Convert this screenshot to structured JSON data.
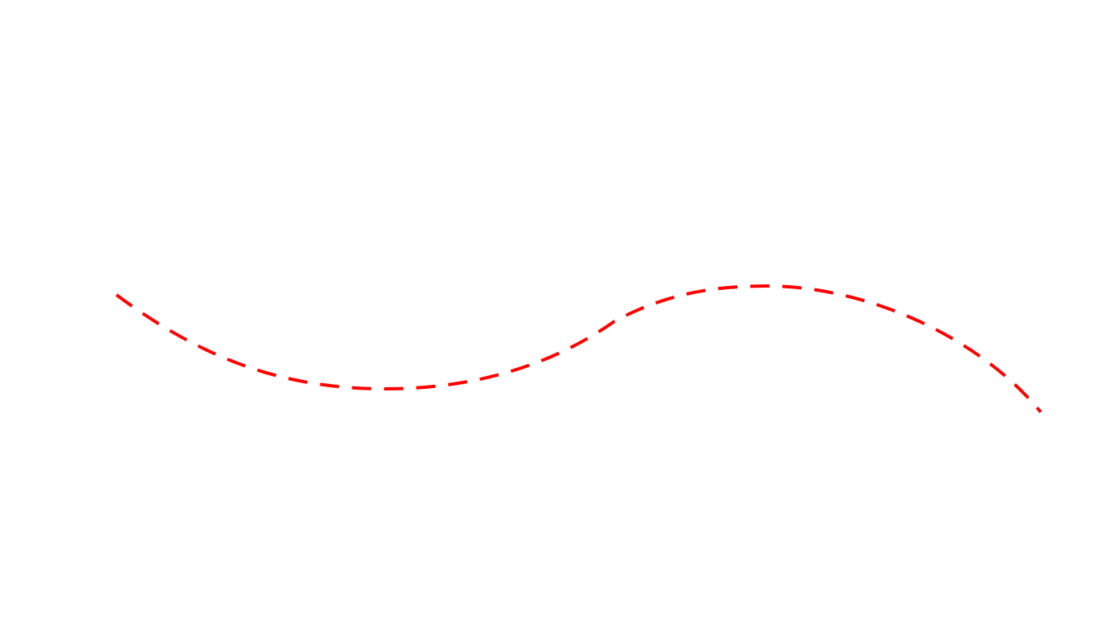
{
  "canvas": {
    "background_color": "#ffffff"
  },
  "curve": {
    "shape": "dashed s-curve",
    "stroke_color": "#ff0000",
    "style": "dashed"
  }
}
